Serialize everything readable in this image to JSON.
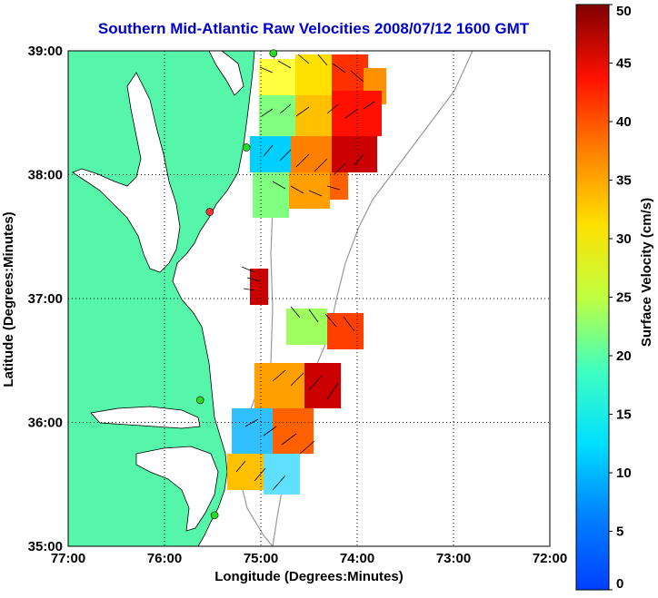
{
  "title": "Southern Mid-Atlantic Raw Velocities 2008/07/12 1600 GMT",
  "axes": {
    "xlabel": "Longitude (Degrees:Minutes)",
    "ylabel": "Latitude (Degrees:Minutes)",
    "xticks": [
      "77:00",
      "76:00",
      "75:00",
      "74:00",
      "73:00",
      "72:00"
    ],
    "yticks": [
      "39:00",
      "38:00",
      "37:00",
      "36:00",
      "35:00"
    ],
    "xlim": [
      -77,
      -72
    ],
    "ylim": [
      35,
      39
    ],
    "grid": "dotted"
  },
  "colorbar": {
    "label": "Surface Velocity (cm/s)",
    "ticks": [
      "50",
      "45",
      "40",
      "35",
      "30",
      "25",
      "20",
      "15",
      "10",
      "5",
      "0"
    ],
    "range": [
      0,
      50
    ],
    "colormap": "jet"
  },
  "colors": {
    "land": "#55f5aa",
    "title": "#0000cc",
    "station": "#22dd22",
    "station_inactive": "#ff3333"
  },
  "stations": [
    {
      "lon": -74.87,
      "lat": 38.98,
      "status": "active"
    },
    {
      "lon": -75.15,
      "lat": 38.22,
      "status": "active"
    },
    {
      "lon": -75.53,
      "lat": 37.7,
      "status": "inactive"
    },
    {
      "lon": -75.63,
      "lat": 36.18,
      "status": "active"
    },
    {
      "lon": -75.48,
      "lat": 35.25,
      "status": "active"
    }
  ]
}
